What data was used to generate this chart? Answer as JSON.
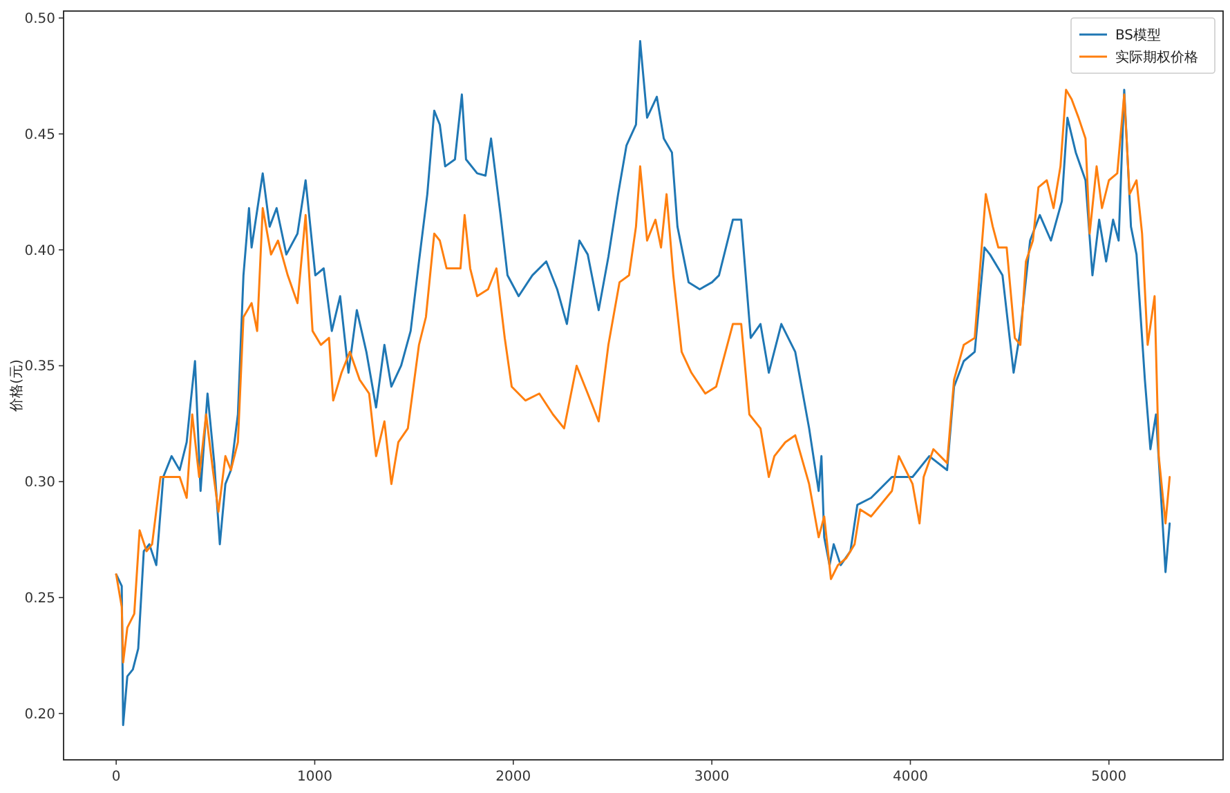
{
  "chart_data": {
    "type": "line",
    "ylabel": "价格(元)",
    "xlim": [
      -265,
      5575
    ],
    "ylim": [
      0.18,
      0.503
    ],
    "xticks": [
      0,
      1000,
      2000,
      3000,
      4000,
      5000
    ],
    "yticks": [
      {
        "value": 0.2,
        "label": "0.20"
      },
      {
        "value": 0.25,
        "label": "0.25"
      },
      {
        "value": 0.3,
        "label": "0.30"
      },
      {
        "value": 0.35,
        "label": "0.35"
      },
      {
        "value": 0.4,
        "label": "0.40"
      },
      {
        "value": 0.45,
        "label": "0.45"
      },
      {
        "value": 0.5,
        "label": "0.50"
      }
    ],
    "legend": "top right",
    "grid": false,
    "marker": "none",
    "line_style": "solid",
    "series": [
      {
        "name": "BS模型",
        "color": "#1f77b4",
        "x": [
          0,
          28,
          35,
          56,
          84,
          111,
          139,
          167,
          202,
          237,
          279,
          320,
          355,
          376,
          397,
          425,
          460,
          494,
          522,
          550,
          578,
          613,
          641,
          669,
          682,
          738,
          773,
          808,
          857,
          913,
          954,
          1003,
          1045,
          1086,
          1128,
          1170,
          1212,
          1260,
          1309,
          1351,
          1386,
          1435,
          1483,
          1525,
          1567,
          1602,
          1630,
          1657,
          1706,
          1741,
          1762,
          1818,
          1860,
          1888,
          1936,
          1971,
          2027,
          2096,
          2166,
          2221,
          2270,
          2333,
          2375,
          2430,
          2479,
          2528,
          2570,
          2618,
          2639,
          2674,
          2723,
          2758,
          2799,
          2827,
          2883,
          2939,
          3001,
          3036,
          3106,
          3148,
          3196,
          3245,
          3287,
          3350,
          3420,
          3490,
          3538,
          3552,
          3566,
          3593,
          3614,
          3649,
          3698,
          3733,
          3802,
          3907,
          4011,
          4095,
          4185,
          4220,
          4269,
          4324,
          4373,
          4401,
          4464,
          4520,
          4554,
          4603,
          4652,
          4708,
          4763,
          4791,
          4833,
          4882,
          4917,
          4951,
          4986,
          5021,
          5049,
          5077,
          5111,
          5139,
          5181,
          5209,
          5237,
          5265,
          5285,
          5306
        ],
        "values": [
          0.26,
          0.255,
          0.195,
          0.216,
          0.219,
          0.228,
          0.27,
          0.273,
          0.264,
          0.302,
          0.311,
          0.305,
          0.317,
          0.335,
          0.352,
          0.296,
          0.338,
          0.308,
          0.273,
          0.299,
          0.305,
          0.329,
          0.389,
          0.418,
          0.401,
          0.433,
          0.41,
          0.418,
          0.398,
          0.407,
          0.43,
          0.389,
          0.392,
          0.365,
          0.38,
          0.347,
          0.374,
          0.356,
          0.332,
          0.359,
          0.341,
          0.35,
          0.365,
          0.395,
          0.424,
          0.46,
          0.454,
          0.436,
          0.439,
          0.467,
          0.439,
          0.433,
          0.432,
          0.448,
          0.415,
          0.389,
          0.38,
          0.389,
          0.395,
          0.383,
          0.368,
          0.404,
          0.398,
          0.374,
          0.397,
          0.424,
          0.445,
          0.454,
          0.49,
          0.457,
          0.466,
          0.448,
          0.442,
          0.41,
          0.386,
          0.383,
          0.386,
          0.389,
          0.413,
          0.413,
          0.362,
          0.368,
          0.347,
          0.368,
          0.356,
          0.323,
          0.296,
          0.311,
          0.276,
          0.264,
          0.273,
          0.264,
          0.27,
          0.29,
          0.293,
          0.302,
          0.302,
          0.311,
          0.305,
          0.341,
          0.352,
          0.356,
          0.401,
          0.398,
          0.389,
          0.347,
          0.365,
          0.404,
          0.415,
          0.404,
          0.421,
          0.457,
          0.442,
          0.43,
          0.389,
          0.413,
          0.395,
          0.413,
          0.404,
          0.469,
          0.41,
          0.398,
          0.344,
          0.314,
          0.329,
          0.29,
          0.261,
          0.282
        ]
      },
      {
        "name": "实际期权价格",
        "color": "#ff7f0e",
        "x": [
          0,
          28,
          35,
          56,
          91,
          118,
          153,
          181,
          223,
          279,
          320,
          355,
          383,
          418,
          453,
          487,
          515,
          550,
          578,
          613,
          641,
          682,
          710,
          738,
          780,
          815,
          864,
          913,
          954,
          989,
          1031,
          1072,
          1093,
          1135,
          1177,
          1226,
          1274,
          1309,
          1351,
          1386,
          1421,
          1469,
          1525,
          1560,
          1602,
          1630,
          1664,
          1734,
          1755,
          1783,
          1818,
          1873,
          1915,
          1957,
          1992,
          2061,
          2131,
          2200,
          2256,
          2319,
          2375,
          2430,
          2479,
          2535,
          2583,
          2618,
          2639,
          2674,
          2716,
          2744,
          2772,
          2806,
          2848,
          2897,
          2967,
          3022,
          3050,
          3106,
          3148,
          3189,
          3245,
          3287,
          3315,
          3370,
          3420,
          3490,
          3538,
          3566,
          3600,
          3635,
          3677,
          3719,
          3747,
          3802,
          3907,
          3942,
          4011,
          4046,
          4067,
          4116,
          4185,
          4220,
          4269,
          4324,
          4359,
          4380,
          4415,
          4443,
          4485,
          4526,
          4554,
          4582,
          4617,
          4645,
          4687,
          4721,
          4756,
          4784,
          4812,
          4847,
          4882,
          4903,
          4938,
          4965,
          5000,
          5042,
          5077,
          5104,
          5139,
          5167,
          5195,
          5230,
          5251,
          5285,
          5306
        ],
        "values": [
          0.26,
          0.246,
          0.222,
          0.237,
          0.243,
          0.279,
          0.27,
          0.273,
          0.302,
          0.302,
          0.302,
          0.293,
          0.329,
          0.302,
          0.329,
          0.305,
          0.287,
          0.311,
          0.305,
          0.317,
          0.371,
          0.377,
          0.365,
          0.418,
          0.398,
          0.404,
          0.389,
          0.377,
          0.415,
          0.365,
          0.359,
          0.362,
          0.335,
          0.347,
          0.356,
          0.344,
          0.338,
          0.311,
          0.326,
          0.299,
          0.317,
          0.323,
          0.359,
          0.371,
          0.407,
          0.404,
          0.392,
          0.392,
          0.415,
          0.392,
          0.38,
          0.383,
          0.392,
          0.362,
          0.341,
          0.335,
          0.338,
          0.329,
          0.323,
          0.35,
          0.338,
          0.326,
          0.359,
          0.386,
          0.389,
          0.41,
          0.436,
          0.404,
          0.413,
          0.401,
          0.424,
          0.389,
          0.356,
          0.347,
          0.338,
          0.341,
          0.35,
          0.368,
          0.368,
          0.329,
          0.323,
          0.302,
          0.311,
          0.317,
          0.32,
          0.299,
          0.276,
          0.285,
          0.258,
          0.264,
          0.267,
          0.273,
          0.288,
          0.285,
          0.296,
          0.311,
          0.299,
          0.282,
          0.302,
          0.314,
          0.308,
          0.344,
          0.359,
          0.362,
          0.401,
          0.424,
          0.41,
          0.401,
          0.401,
          0.362,
          0.359,
          0.395,
          0.404,
          0.427,
          0.43,
          0.418,
          0.436,
          0.469,
          0.465,
          0.457,
          0.448,
          0.407,
          0.436,
          0.418,
          0.43,
          0.433,
          0.467,
          0.424,
          0.43,
          0.407,
          0.359,
          0.38,
          0.311,
          0.282,
          0.302
        ]
      }
    ]
  }
}
